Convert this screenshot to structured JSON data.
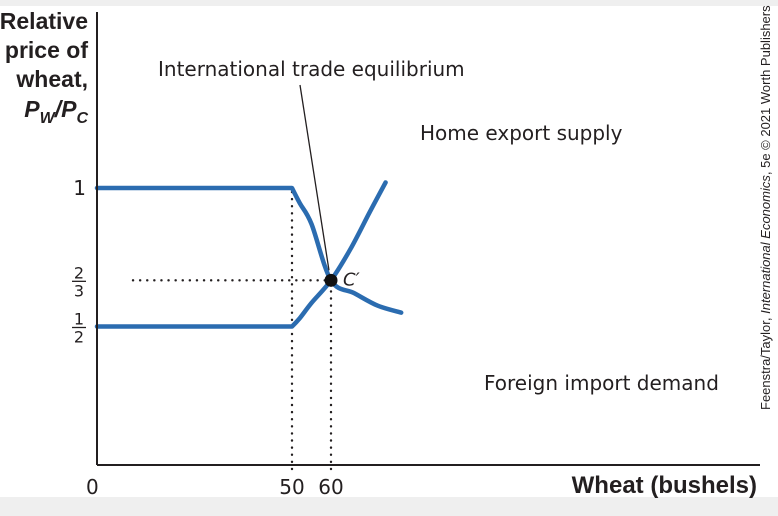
{
  "chart_data": {
    "type": "line",
    "title": "",
    "xlabel": "Wheat (bushels)",
    "ylabel_lines": [
      "Relative",
      "price of",
      "wheat,"
    ],
    "ylabel_symbol": {
      "base1": "P",
      "sub1": "W",
      "sep": "/",
      "base2": "P",
      "sub2": "C"
    },
    "xlim": [
      0,
      100
    ],
    "ylim": [
      0,
      1.25
    ],
    "x_origin_label": "0",
    "x_ticks": [
      {
        "value": 50,
        "label": "50"
      },
      {
        "value": 60,
        "label": "60"
      }
    ],
    "y_ticks": [
      {
        "value": 1,
        "label": "1"
      },
      {
        "value": 0.6667,
        "numerator": "2",
        "denominator": "3"
      },
      {
        "value": 0.5,
        "numerator": "1",
        "denominator": "2"
      }
    ],
    "series": [
      {
        "name": "Home export supply",
        "color": "#2b6cb0",
        "points": [
          [
            0,
            0.5
          ],
          [
            50,
            0.5
          ],
          [
            52,
            0.53
          ],
          [
            55,
            0.585
          ],
          [
            60,
            0.6667
          ],
          [
            65,
            0.78
          ],
          [
            70,
            0.915
          ],
          [
            74,
            1.02
          ]
        ]
      },
      {
        "name": "Foreign import demand",
        "color": "#2b6cb0",
        "points": [
          [
            0,
            1
          ],
          [
            50,
            1
          ],
          [
            52,
            0.945
          ],
          [
            55,
            0.87
          ],
          [
            60,
            0.6667
          ],
          [
            66,
            0.62
          ],
          [
            72,
            0.575
          ],
          [
            78,
            0.55
          ]
        ]
      }
    ],
    "reference_lines": [
      {
        "type": "vertical",
        "x": 50,
        "from": 0,
        "to": 1,
        "style": "dotted"
      },
      {
        "type": "vertical",
        "x": 60,
        "from": 0,
        "to": 0.6667,
        "style": "dotted"
      },
      {
        "type": "horizontal",
        "y": 0.6667,
        "from": 0,
        "to": 60,
        "style": "dotted"
      }
    ],
    "equilibrium": {
      "x": 60,
      "y": 0.6667,
      "label": "C′"
    },
    "annotations": [
      {
        "text": "International trade equilibrium"
      },
      {
        "text": "Home export supply"
      },
      {
        "text": "Foreign import demand"
      }
    ],
    "grid": false,
    "legend": "none"
  },
  "credit": {
    "prefix": "Feenstra/Taylor, ",
    "italic": "International Economics",
    "suffix": ", 5e © 2021 Worth Publishers"
  }
}
